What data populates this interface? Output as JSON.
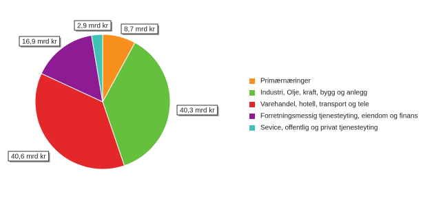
{
  "chart_data": {
    "type": "pie",
    "categories": [
      "Primærnæringer",
      "Industri, Olje, kraft, bygg og anlegg",
      "Varehandel, hotell, transport og tele",
      "Forretningsmessig tjenesteyting, eiendom og finans",
      "Sevice, offentlig og privat tjenesteyting"
    ],
    "values": [
      8.7,
      40.3,
      40.6,
      16.9,
      2.9
    ],
    "value_labels": [
      "8,7 mrd kr",
      "40,3 mrd kr",
      "40,6 mrd kr",
      "16,9 mrd kr",
      "2,9 mrd kr"
    ],
    "colors": [
      "#f7901e",
      "#65c13d",
      "#e4282a",
      "#8d1b93",
      "#3fc4b8"
    ],
    "legend": "right"
  }
}
